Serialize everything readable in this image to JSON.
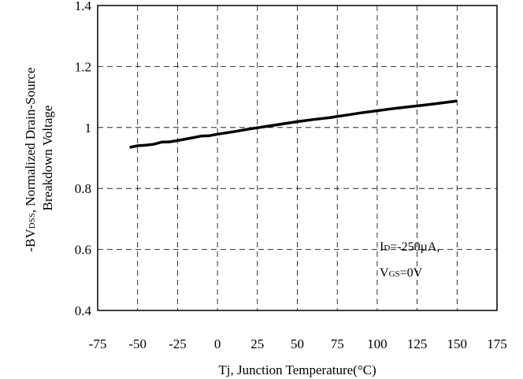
{
  "chart_data": {
    "type": "line",
    "xlabel": "Tj, Junction Temperature(°C)",
    "ylabel_line1": "-BV",
    "ylabel_line1_sub": "DSS",
    "ylabel_line1_rest": ", Normalized Drain-Source",
    "ylabel_line2": "Breakdown Voltage",
    "xlim": [
      -75,
      175
    ],
    "ylim": [
      0.4,
      1.4
    ],
    "xticks": [
      -75,
      -50,
      -25,
      0,
      25,
      50,
      75,
      100,
      125,
      150,
      175
    ],
    "yticks": [
      0.4,
      0.6,
      0.8,
      1,
      1.2,
      1.4
    ],
    "ytick_labels": [
      "0.4",
      "0.6",
      "0.8",
      "1",
      "1.2",
      "1.4"
    ],
    "grid": true,
    "annotation": {
      "line1_main": "I",
      "line1_sub": "D",
      "line1_rest": "=-250µA,",
      "line2_main": "V",
      "line2_sub": "GS",
      "line2_rest": "=0V"
    },
    "series": [
      {
        "x": [
          -55,
          -50,
          -45,
          -40,
          -35,
          -30,
          -25,
          -20,
          -15,
          -10,
          -5,
          0,
          10,
          20,
          30,
          40,
          50,
          60,
          70,
          80,
          90,
          100,
          110,
          120,
          130,
          140,
          150
        ],
        "y": [
          0.935,
          0.94,
          0.942,
          0.945,
          0.952,
          0.953,
          0.957,
          0.962,
          0.967,
          0.972,
          0.973,
          0.978,
          0.986,
          0.995,
          1.003,
          1.011,
          1.019,
          1.026,
          1.032,
          1.04,
          1.048,
          1.055,
          1.062,
          1.068,
          1.074,
          1.08,
          1.087
        ]
      }
    ]
  }
}
